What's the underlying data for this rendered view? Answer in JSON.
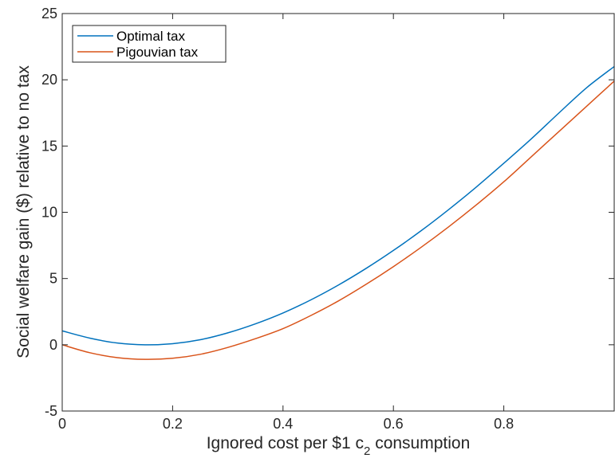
{
  "chart_data": {
    "type": "line",
    "title": "",
    "xlabel": "Ignored cost per $1 c",
    "xlabel_subscript": "2",
    "xlabel_suffix": " consumption",
    "ylabel": "Social welfare gain ($) relative to no tax",
    "xlim": [
      0,
      1
    ],
    "ylim": [
      -5,
      25
    ],
    "x_ticks": [
      0,
      0.2,
      0.4,
      0.6,
      0.8,
      1
    ],
    "x_tick_labels": [
      "0",
      "0.2",
      "0.4",
      "0.6",
      "0.8",
      ""
    ],
    "y_ticks": [
      -5,
      0,
      5,
      10,
      15,
      20,
      25
    ],
    "y_tick_labels": [
      "-5",
      "0",
      "5",
      "10",
      "15",
      "20",
      "25"
    ],
    "grid": false,
    "legend_position": "top-left",
    "x": [
      0,
      0.05,
      0.1,
      0.15,
      0.2,
      0.25,
      0.3,
      0.35,
      0.4,
      0.45,
      0.5,
      0.55,
      0.6,
      0.65,
      0.7,
      0.75,
      0.8,
      0.85,
      0.9,
      0.95,
      1.0
    ],
    "series": [
      {
        "name": "Optimal tax",
        "color": "#0072BD",
        "values": [
          1.05,
          0.5,
          0.13,
          0.0,
          0.08,
          0.38,
          0.9,
          1.58,
          2.4,
          3.38,
          4.5,
          5.75,
          7.12,
          8.6,
          10.2,
          11.9,
          13.7,
          15.55,
          17.5,
          19.4,
          21.0
        ]
      },
      {
        "name": "Pigouvian tax",
        "color": "#D95319",
        "values": [
          0.0,
          -0.6,
          -0.97,
          -1.1,
          -1.02,
          -0.72,
          -0.2,
          0.46,
          1.22,
          2.2,
          3.3,
          4.55,
          5.9,
          7.35,
          8.9,
          10.55,
          12.3,
          14.2,
          16.1,
          18.0,
          19.9
        ]
      }
    ]
  }
}
